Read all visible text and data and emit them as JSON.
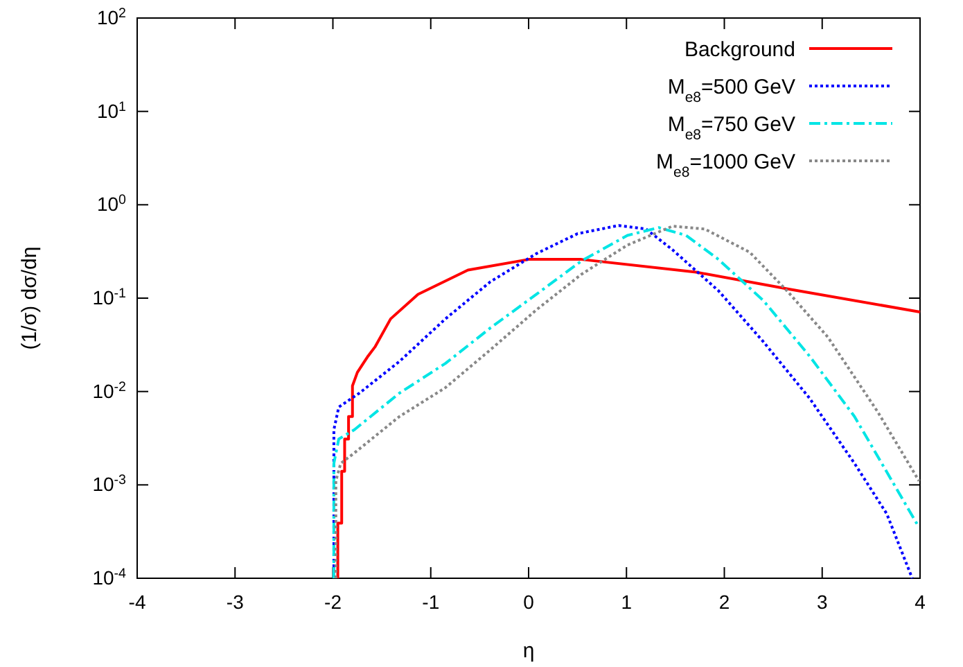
{
  "chart_data": {
    "type": "line",
    "xlabel": "η",
    "ylabel": "(1/σ) dσ/dη",
    "log": "y",
    "legend": "top right",
    "grid": false,
    "xlim": [
      -4,
      4
    ],
    "xticks": [
      -4,
      -3,
      -2,
      -1,
      0,
      1,
      2,
      3,
      4
    ],
    "ylim": [
      0.0001,
      100
    ],
    "yticks": [
      {
        "value": 0.0001,
        "label": "10$^{-4}$"
      },
      {
        "value": 0.001,
        "label": "10$^{-3}$"
      },
      {
        "value": 0.01,
        "label": "10$^{-2}$"
      },
      {
        "value": 0.1,
        "label": "10$^{-1}$"
      },
      {
        "value": 1,
        "label": "10$^{0}$"
      },
      {
        "value": 10,
        "label": "10$^{1}$"
      },
      {
        "value": 100,
        "label": "10$^{2}$"
      }
    ],
    "series": [
      {
        "name": "Background",
        "color": "#ff0000",
        "line_style": "solid",
        "x": [
          -1.95,
          -1.95,
          -1.91,
          -1.91,
          -1.88,
          -1.88,
          -1.84,
          -1.84,
          -1.8,
          -1.8,
          -1.75,
          -1.69,
          -1.64,
          -1.57,
          -1.41,
          -1.13,
          -0.62,
          0,
          0.54,
          1.71,
          2.64,
          4
        ],
        "values": [
          0.0001,
          0.00039,
          0.00039,
          0.0014,
          0.0014,
          0.0031,
          0.0031,
          0.0054,
          0.0054,
          0.0115,
          0.016,
          0.02,
          0.024,
          0.03,
          0.06,
          0.11,
          0.2,
          0.26,
          0.26,
          0.19,
          0.126,
          0.071
        ]
      },
      {
        "name": "M$_{e8}$=500 GeV",
        "color": "#0000ff",
        "line_style": "dotted",
        "x": [
          -1.99,
          -1.99,
          -1.94,
          -1.73,
          -1.32,
          -0.85,
          -0.39,
          0.08,
          0.5,
          0.92,
          1.2,
          1.47,
          1.94,
          2.4,
          2.87,
          3.33,
          3.66,
          3.92
        ],
        "values": [
          0.0001,
          0.0039,
          0.0068,
          0.0096,
          0.021,
          0.06,
          0.15,
          0.3,
          0.49,
          0.6,
          0.55,
          0.33,
          0.12,
          0.034,
          0.0085,
          0.0017,
          0.00049,
          0.0001
        ]
      },
      {
        "name": "M$_{e8}$=750 GeV",
        "color": "#00e5e5",
        "line_style": "dashed",
        "x": [
          -1.99,
          -1.99,
          -1.94,
          -1.78,
          -1.32,
          -0.85,
          -0.39,
          0.08,
          0.54,
          1.01,
          1.33,
          1.61,
          1.94,
          2.4,
          2.87,
          3.33,
          3.99
        ],
        "values": [
          0.0001,
          0.0017,
          0.0031,
          0.0039,
          0.0096,
          0.02,
          0.048,
          0.11,
          0.25,
          0.47,
          0.57,
          0.47,
          0.26,
          0.094,
          0.024,
          0.0054,
          0.00035
        ]
      },
      {
        "name": "M$_{e8}$=1000 GeV",
        "color": "#888888",
        "line_style": "dotted",
        "x": [
          -1.97,
          -1.97,
          -1.92,
          -1.78,
          -1.32,
          -0.85,
          -0.39,
          0.08,
          0.54,
          1.01,
          1.47,
          1.8,
          2.26,
          2.64,
          3.06,
          3.57,
          3.99
        ],
        "values": [
          0.0001,
          0.0011,
          0.0017,
          0.0022,
          0.0054,
          0.011,
          0.028,
          0.075,
          0.18,
          0.37,
          0.59,
          0.55,
          0.31,
          0.12,
          0.038,
          0.006,
          0.0011
        ]
      }
    ]
  }
}
